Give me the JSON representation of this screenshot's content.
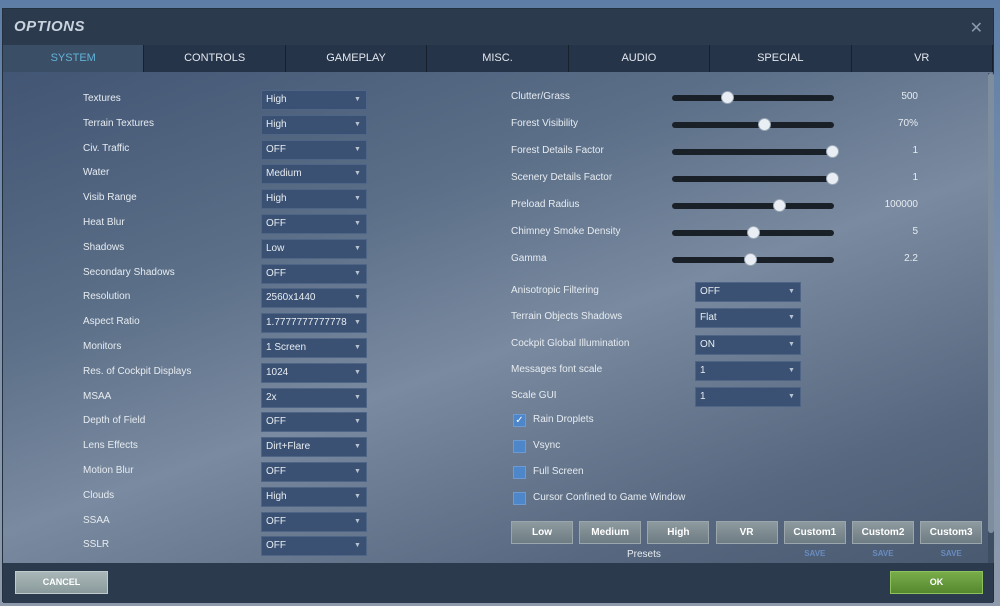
{
  "title": "OPTIONS",
  "tabs": [
    {
      "label": "SYSTEM",
      "active": true
    },
    {
      "label": "CONTROLS"
    },
    {
      "label": "GAMEPLAY"
    },
    {
      "label": "MISC."
    },
    {
      "label": "AUDIO"
    },
    {
      "label": "SPECIAL"
    },
    {
      "label": "VR"
    }
  ],
  "left_settings": [
    {
      "label": "Textures",
      "value": "High"
    },
    {
      "label": "Terrain Textures",
      "value": "High"
    },
    {
      "label": "Civ. Traffic",
      "value": "OFF"
    },
    {
      "label": "Water",
      "value": "Medium"
    },
    {
      "label": "Visib Range",
      "value": "High"
    },
    {
      "label": "Heat Blur",
      "value": "OFF"
    },
    {
      "label": "Shadows",
      "value": "Low"
    },
    {
      "label": "Secondary Shadows",
      "value": "OFF"
    },
    {
      "label": "Resolution",
      "value": "2560x1440"
    },
    {
      "label": "Aspect Ratio",
      "value": "1.7777777777778"
    },
    {
      "label": "Monitors",
      "value": "1 Screen"
    },
    {
      "label": "Res. of Cockpit Displays",
      "value": "1024"
    },
    {
      "label": "MSAA",
      "value": "2x"
    },
    {
      "label": "Depth of Field",
      "value": "OFF"
    },
    {
      "label": "Lens Effects",
      "value": "Dirt+Flare"
    },
    {
      "label": "Motion Blur",
      "value": "OFF"
    },
    {
      "label": "Clouds",
      "value": "High"
    },
    {
      "label": "SSAA",
      "value": "OFF"
    },
    {
      "label": "SSLR",
      "value": "OFF"
    }
  ],
  "sliders": [
    {
      "label": "Clutter/Grass",
      "value": "500",
      "level": 0.34
    },
    {
      "label": "Forest Visibility",
      "value": "70%",
      "level": 0.57
    },
    {
      "label": "Forest Details Factor",
      "value": "1",
      "level": 0.99
    },
    {
      "label": "Scenery Details Factor",
      "value": "1",
      "level": 0.99
    },
    {
      "label": "Preload Radius",
      "value": "100000",
      "level": 0.66
    },
    {
      "label": "Chimney Smoke Density",
      "value": "5",
      "level": 0.5
    },
    {
      "label": "Gamma",
      "value": "2.2",
      "level": 0.48
    }
  ],
  "right_settings": [
    {
      "label": "Anisotropic Filtering",
      "value": "OFF"
    },
    {
      "label": "Terrain Objects Shadows",
      "value": "Flat"
    },
    {
      "label": "Cockpit Global Illumination",
      "value": "ON"
    },
    {
      "label": "Messages font scale",
      "value": "1"
    },
    {
      "label": "Scale GUI",
      "value": "1"
    }
  ],
  "checkboxes": [
    {
      "label": "Rain Droplets",
      "checked": true
    },
    {
      "label": "Vsync",
      "checked": false
    },
    {
      "label": "Full Screen",
      "checked": false
    },
    {
      "label": "Cursor Confined to Game Window",
      "checked": false
    }
  ],
  "presets": {
    "label": "Presets",
    "buttons": [
      "Low",
      "Medium",
      "High",
      "VR",
      "Custom1",
      "Custom2",
      "Custom3"
    ],
    "save_label": "SAVE"
  },
  "footer": {
    "cancel": "CANCEL",
    "ok": "OK"
  },
  "icons": {
    "close": "close-icon",
    "dropdown": "chevron-down-icon",
    "check": "checkmark-icon"
  },
  "colors": {
    "active_tab": "#63b3d9",
    "ok": "#6a9d3d",
    "checkbox": "#4d86c9"
  }
}
